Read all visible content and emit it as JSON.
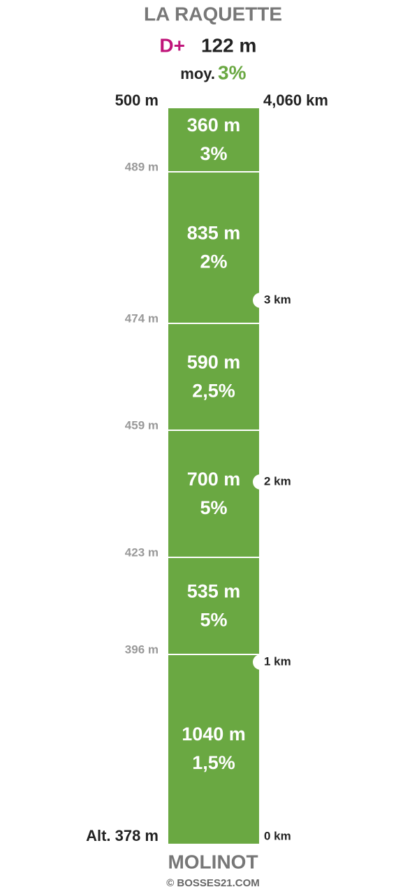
{
  "header": {
    "title": "LA RAQUETTE",
    "gain_label": "D+",
    "gain": "122 m",
    "avg_label": "moy.",
    "avg": "3%"
  },
  "top_altitude": "500 m",
  "total_distance": "4,060 km",
  "segments": [
    {
      "length": "360 m",
      "grade": "3%"
    },
    {
      "length": "835 m",
      "grade": "2%"
    },
    {
      "length": "590 m",
      "grade": "2,5%"
    },
    {
      "length": "700 m",
      "grade": "5%"
    },
    {
      "length": "535 m",
      "grade": "5%"
    },
    {
      "length": "1040 m",
      "grade": "1,5%"
    }
  ],
  "altitude_labels": [
    "489 m",
    "474 m",
    "459 m",
    "423 m",
    "396 m"
  ],
  "base_altitude": "Alt. 378 m",
  "km_markers": [
    "3 km",
    "2 km",
    "1 km",
    "0 km"
  ],
  "footer": {
    "start": "MOLINOT",
    "credit": "© BOSSES21.COM"
  }
}
